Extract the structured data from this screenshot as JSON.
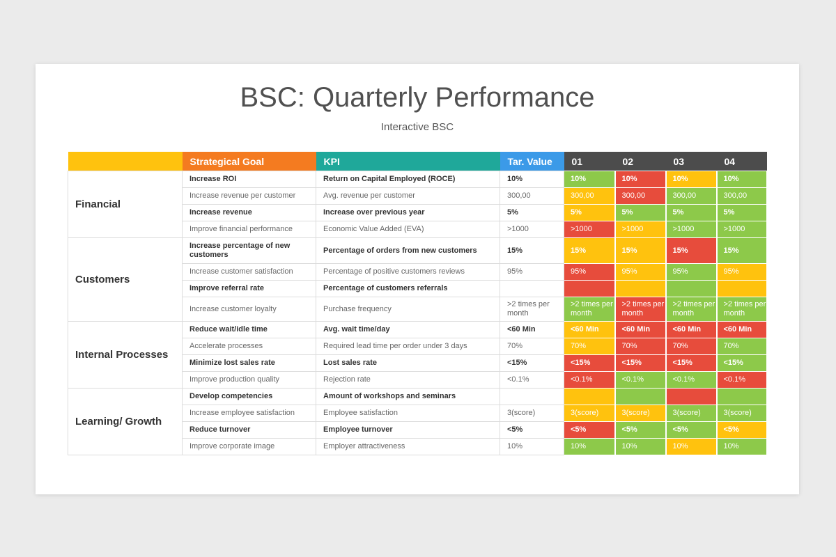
{
  "title": "BSC: Quarterly Performance",
  "subtitle": "Interactive BSC",
  "colors": {
    "green": "#8dc94a",
    "red": "#e74c3c",
    "yellow": "#ffc20e",
    "orange": "#f47b20",
    "teal": "#1fa89a",
    "blue": "#3b9ae8",
    "dark": "#4c4c4c",
    "category": "#ffc20e"
  },
  "headers": {
    "category": "",
    "goal": "Strategical Goal",
    "kpi": "KPI",
    "target": "Tar. Value",
    "quarters": [
      "01",
      "02",
      "03",
      "04"
    ]
  },
  "sections": [
    {
      "name": "Financial",
      "rows": [
        {
          "goal": "Increase ROI",
          "kpi": "Return on Capital Employed (ROCE)",
          "target": "10%",
          "bold": true,
          "status": [
            "green",
            "red",
            "yellow",
            "green"
          ],
          "value": "10%"
        },
        {
          "goal": "Increase revenue per customer",
          "kpi": "Avg. revenue per customer",
          "target": "300,00",
          "bold": false,
          "status": [
            "yellow",
            "red",
            "green",
            "green"
          ],
          "value": "300,00"
        },
        {
          "goal": "Increase revenue",
          "kpi": "Increase over previous year",
          "target": "5%",
          "bold": true,
          "status": [
            "yellow",
            "green",
            "green",
            "green"
          ],
          "value": "5%"
        },
        {
          "goal": "Improve financial performance",
          "kpi": "Economic Value Added (EVA)",
          "target": ">1000",
          "bold": false,
          "status": [
            "red",
            "yellow",
            "green",
            "green"
          ],
          "value": ">1000"
        }
      ]
    },
    {
      "name": "Customers",
      "rows": [
        {
          "goal": "Increase percentage of new customers",
          "kpi": "Percentage of orders from new customers",
          "target": "15%",
          "bold": true,
          "status": [
            "yellow",
            "yellow",
            "red",
            "green"
          ],
          "value": "15%"
        },
        {
          "goal": "Increase customer satisfaction",
          "kpi": "Percentage of positive customers reviews",
          "target": "95%",
          "bold": false,
          "status": [
            "red",
            "yellow",
            "green",
            "yellow"
          ],
          "value": "95%"
        },
        {
          "goal": "Improve referral rate",
          "kpi": "Percentage of customers referrals",
          "target": "",
          "bold": true,
          "status": [
            "red",
            "yellow",
            "green",
            "yellow"
          ],
          "value": ""
        },
        {
          "goal": "Increase customer loyalty",
          "kpi": "Purchase frequency",
          "target": ">2 times per month",
          "bold": false,
          "status": [
            "green",
            "red",
            "green",
            "green"
          ],
          "value": ">2 times per month"
        }
      ]
    },
    {
      "name": "Internal Processes",
      "rows": [
        {
          "goal": "Reduce wait/idle time",
          "kpi": "Avg. wait time/day",
          "target": "<60 Min",
          "bold": true,
          "status": [
            "yellow",
            "red",
            "red",
            "red"
          ],
          "value": "<60 Min"
        },
        {
          "goal": "Accelerate processes",
          "kpi": "Required lead time per order under 3 days",
          "target": "70%",
          "bold": false,
          "status": [
            "yellow",
            "red",
            "red",
            "green"
          ],
          "value": "70%"
        },
        {
          "goal": "Minimize lost sales rate",
          "kpi": "Lost sales rate",
          "target": "<15%",
          "bold": true,
          "status": [
            "red",
            "red",
            "red",
            "green"
          ],
          "value": "<15%"
        },
        {
          "goal": "Improve production quality",
          "kpi": "Rejection rate",
          "target": "<0.1%",
          "bold": false,
          "status": [
            "red",
            "green",
            "green",
            "red"
          ],
          "value": "<0.1%"
        }
      ]
    },
    {
      "name": "Learning/ Growth",
      "rows": [
        {
          "goal": "Develop competencies",
          "kpi": "Amount of workshops and seminars",
          "target": "",
          "bold": true,
          "status": [
            "yellow",
            "green",
            "red",
            "green"
          ],
          "value": ""
        },
        {
          "goal": "Increase employee satisfaction",
          "kpi": "Employee satisfaction",
          "target": "3(score)",
          "bold": false,
          "status": [
            "yellow",
            "yellow",
            "green",
            "green"
          ],
          "value": "3(score)"
        },
        {
          "goal": "Reduce turnover",
          "kpi": "Employee turnover",
          "target": "<5%",
          "bold": true,
          "status": [
            "red",
            "green",
            "green",
            "yellow"
          ],
          "value": "<5%"
        },
        {
          "goal": "Improve corporate image",
          "kpi": "Employer attractiveness",
          "target": "10%",
          "bold": false,
          "status": [
            "green",
            "green",
            "yellow",
            "green"
          ],
          "value": "10%"
        }
      ]
    }
  ]
}
